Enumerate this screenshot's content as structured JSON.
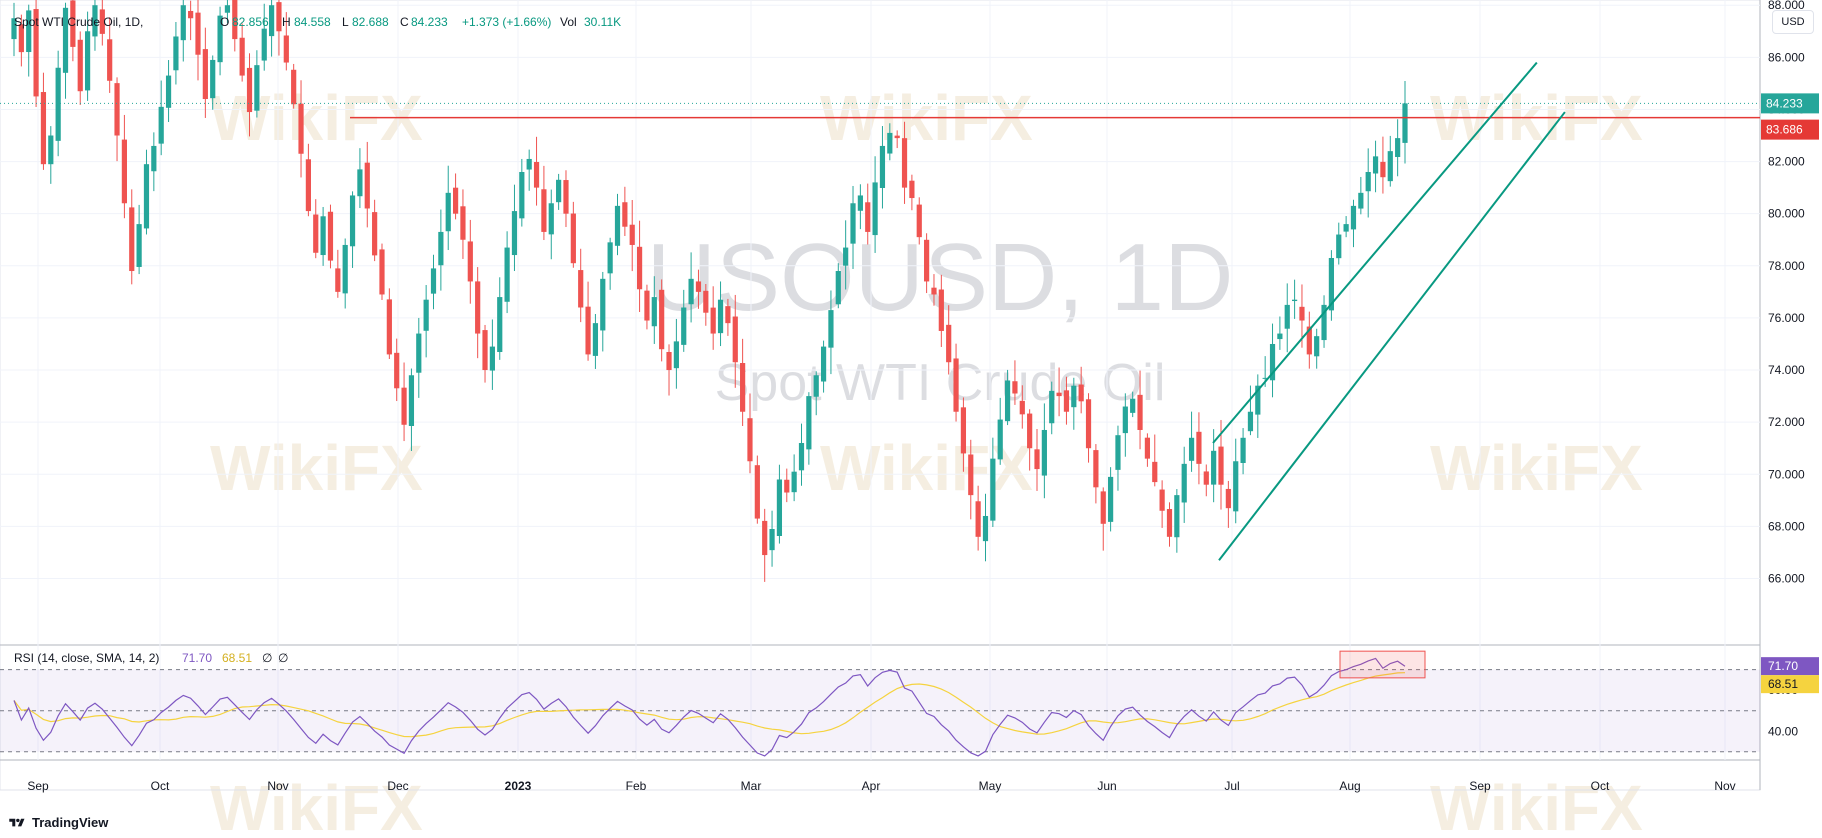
{
  "header": {
    "symbol_text": "Spot WTI Crude Oil, 1D,",
    "o_label": "O",
    "o_value": "82.856",
    "h_label": "H",
    "h_value": "84.558",
    "l_label": "L",
    "l_value": "82.688",
    "c_label": "C",
    "c_value": "84.233",
    "change": "+1.373 (+1.66%)",
    "vol_label": "Vol",
    "vol_value": "30.11K"
  },
  "currency_button": "USD",
  "watermark": {
    "big": "USOUSD, 1D",
    "sub": "Spot WTI Crude Oil",
    "brand": "WikiFX"
  },
  "rsi_legend": {
    "label": "RSI (14, close, SMA, 14, 2)",
    "rsi_value": "71.70",
    "sma_value": "68.51",
    "extra1": "∅",
    "extra2": "∅"
  },
  "tv_brand": "TradingView",
  "colors": {
    "up": "#26a69a",
    "down": "#ef5350",
    "resistance": "#e53935",
    "channel": "#089981",
    "rsi": "#7e57c2",
    "rsi_sma": "#f5d33f"
  },
  "chart_data": {
    "type": "candlestick",
    "title": "USOUSD, 1D",
    "subtitle": "Spot WTI Crude Oil",
    "x_ticks": [
      "Sep",
      "Oct",
      "Nov",
      "Dec",
      "2023",
      "Feb",
      "Mar",
      "Apr",
      "May",
      "Jun",
      "Jul",
      "Aug",
      "Sep",
      "Oct",
      "Nov"
    ],
    "y_ticks": [
      "66.000",
      "68.000",
      "70.000",
      "72.000",
      "74.000",
      "76.000",
      "78.000",
      "80.000",
      "82.000",
      "84.000",
      "86.000",
      "88.000"
    ],
    "ylim": [
      64.6,
      88.2
    ],
    "last_price": "84.233",
    "resistance_label": "83.686",
    "resistance": 83.686,
    "channel": {
      "upper": [
        [
          0,
          71.2
        ],
        [
          44,
          85.8
        ]
      ],
      "lower": [
        [
          0,
          66.7
        ],
        [
          47,
          83.9
        ]
      ]
    },
    "candles_close": [
      87.5,
      86.2,
      87.8,
      84.5,
      81.9,
      83.0,
      85.6,
      87.9,
      86.4,
      84.7,
      87.0,
      88.0,
      86.9,
      85.1,
      83.0,
      80.4,
      77.8,
      79.6,
      81.9,
      82.6,
      84.1,
      85.3,
      86.8,
      88.0,
      87.5,
      86.1,
      84.4,
      85.9,
      87.6,
      88.0,
      86.7,
      85.3,
      83.9,
      85.7,
      87.1,
      88.0,
      87.0,
      85.8,
      84.2,
      82.3,
      80.1,
      78.5,
      79.9,
      78.2,
      77.0,
      78.8,
      80.7,
      81.7,
      80.2,
      78.4,
      76.9,
      74.6,
      73.3,
      71.9,
      73.8,
      75.4,
      76.7,
      77.9,
      79.3,
      80.8,
      80.0,
      79.0,
      77.4,
      75.4,
      74.0,
      74.9,
      76.8,
      78.7,
      80.1,
      81.6,
      82.1,
      81.0,
      79.3,
      80.4,
      81.3,
      80.0,
      78.1,
      76.4,
      74.6,
      75.8,
      77.5,
      78.9,
      80.3,
      79.5,
      78.8,
      77.1,
      75.9,
      76.8,
      74.8,
      74.0,
      75.1,
      76.4,
      77.5,
      77.0,
      76.2,
      75.4,
      76.7,
      75.8,
      74.3,
      72.4,
      70.5,
      68.3,
      66.9,
      67.9,
      69.8,
      69.3,
      70.1,
      71.2,
      73.0,
      73.8,
      74.9,
      76.3,
      77.8,
      78.7,
      80.4,
      80.7,
      79.3,
      81.2,
      82.6,
      83.1,
      82.9,
      81.0,
      80.6,
      79.1,
      77.4,
      76.9,
      75.5,
      74.3,
      72.4,
      70.8,
      69.2,
      67.6,
      68.4,
      70.6,
      72.1,
      73.6,
      73.1,
      72.3,
      71.0,
      70.2,
      71.7,
      73.2,
      73.0,
      72.4,
      73.4,
      72.8,
      71.0,
      69.5,
      68.1,
      69.9,
      71.5,
      72.6,
      72.9,
      71.7,
      70.6,
      69.7,
      68.6,
      67.6,
      69.2,
      70.4,
      71.4,
      70.4,
      69.6,
      70.9,
      69.6,
      68.7,
      70.5,
      71.4,
      72.4,
      73.4,
      73.7,
      75.0,
      75.4,
      76.5,
      76.7,
      75.9,
      74.6,
      75.3,
      76.5,
      78.3,
      79.2,
      79.6,
      80.3,
      80.8,
      81.6,
      82.2,
      81.4,
      82.4,
      82.9,
      84.233
    ],
    "rsi": {
      "label": "RSI (14, close, SMA, 14, 2)",
      "value": 71.7,
      "sma_value": 68.51,
      "levels": [
        70,
        50,
        30
      ],
      "y_ticks": [
        "40.00",
        "60.00"
      ],
      "ylim": [
        26,
        82
      ]
    }
  }
}
